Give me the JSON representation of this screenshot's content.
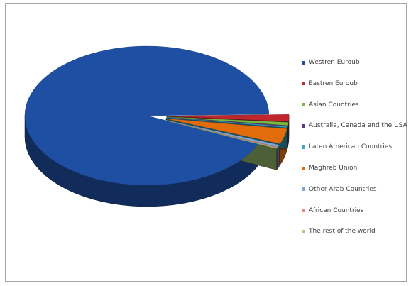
{
  "chart_data": {
    "type": "pie",
    "style": "3d-exploded",
    "title": "",
    "legend_position": "right",
    "categories": [
      "Westren Euroub",
      "Eastren Euroub",
      "Asian Countries",
      "Australia, Canada and the USA",
      "Laten American Countries",
      "Maghreb Union",
      "Other Arab Countries",
      "African Countries",
      "The rest of the world"
    ],
    "values": [
      93.0,
      1.6,
      0.7,
      0.2,
      0.2,
      3.5,
      0.5,
      0.2,
      0.1
    ],
    "colors": [
      "#1f4fa3",
      "#c0262d",
      "#78b83c",
      "#5b3a8c",
      "#3aa7c4",
      "#e36c0a",
      "#7fa9d6",
      "#e58a80",
      "#a9d27a"
    ]
  }
}
